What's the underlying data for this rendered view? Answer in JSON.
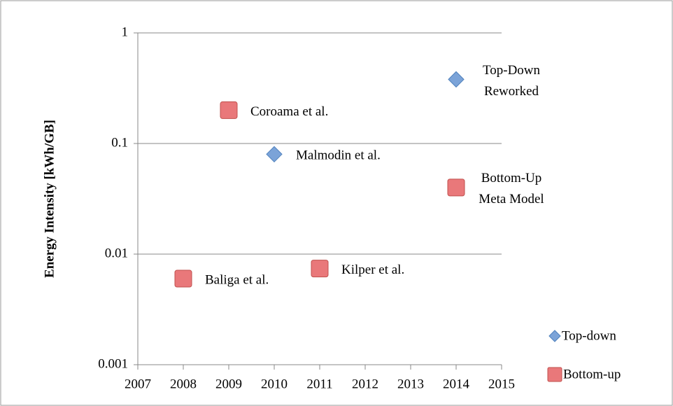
{
  "chart_data": {
    "type": "scatter",
    "y_label": "Energy Intensity [kWh/GB]",
    "xlim": [
      2007,
      2015
    ],
    "xticks": [
      2007,
      2008,
      2009,
      2010,
      2011,
      2012,
      2013,
      2014,
      2015
    ],
    "ylim": [
      0.001,
      1
    ],
    "yticks": [
      0.001,
      0.01,
      0.1,
      1
    ],
    "y_scale": "log",
    "grid": true,
    "legend": "right",
    "series": [
      {
        "name": "Top-down",
        "color": "#7ba3d8",
        "marker": "diamond",
        "x": [
          2010,
          2014
        ],
        "values": [
          0.08,
          0.38
        ],
        "labels": [
          [
            "Malmodin et al."
          ],
          [
            "Top-Down",
            "Reworked"
          ]
        ]
      },
      {
        "name": "Bottom-up",
        "color": "#e9787a",
        "marker": "square",
        "x": [
          2008,
          2009,
          2011,
          2014
        ],
        "values": [
          0.006,
          0.2,
          0.0074,
          0.04
        ],
        "labels": [
          [
            "Baliga et al."
          ],
          [
            "Coroama et al."
          ],
          [
            "Kilper et al."
          ],
          [
            "Bottom-Up",
            "Meta Model"
          ]
        ]
      }
    ]
  }
}
